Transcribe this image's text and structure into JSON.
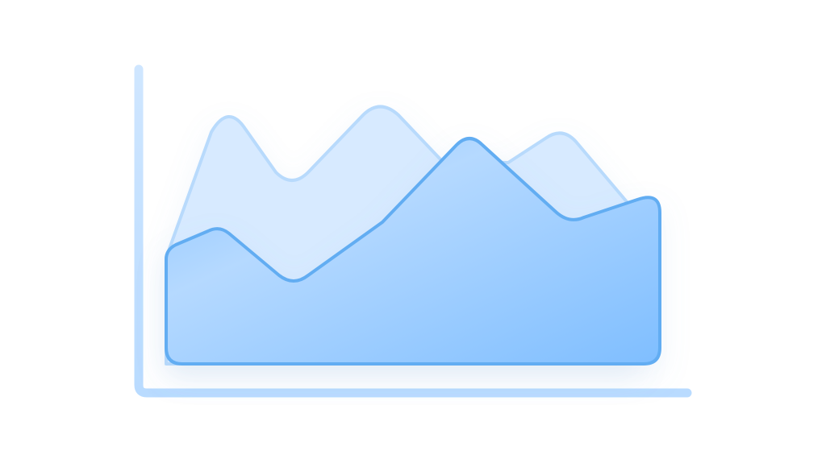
{
  "illustration": {
    "kind": "area-chart-icon",
    "colors": {
      "axis_top": "#cfe6ff",
      "axis_bottom": "#b9dbff",
      "back_fill": "#d7eaff",
      "back_stroke": "#b3d7fb",
      "front_fill_light": "#b4d9ff",
      "front_fill_dark": "#80bfff",
      "front_stroke": "#62adf2"
    },
    "back_area_values": [
      25,
      88,
      65,
      95,
      62,
      84,
      47
    ],
    "front_area_values": [
      25,
      35,
      18,
      45,
      88,
      40,
      50
    ]
  }
}
